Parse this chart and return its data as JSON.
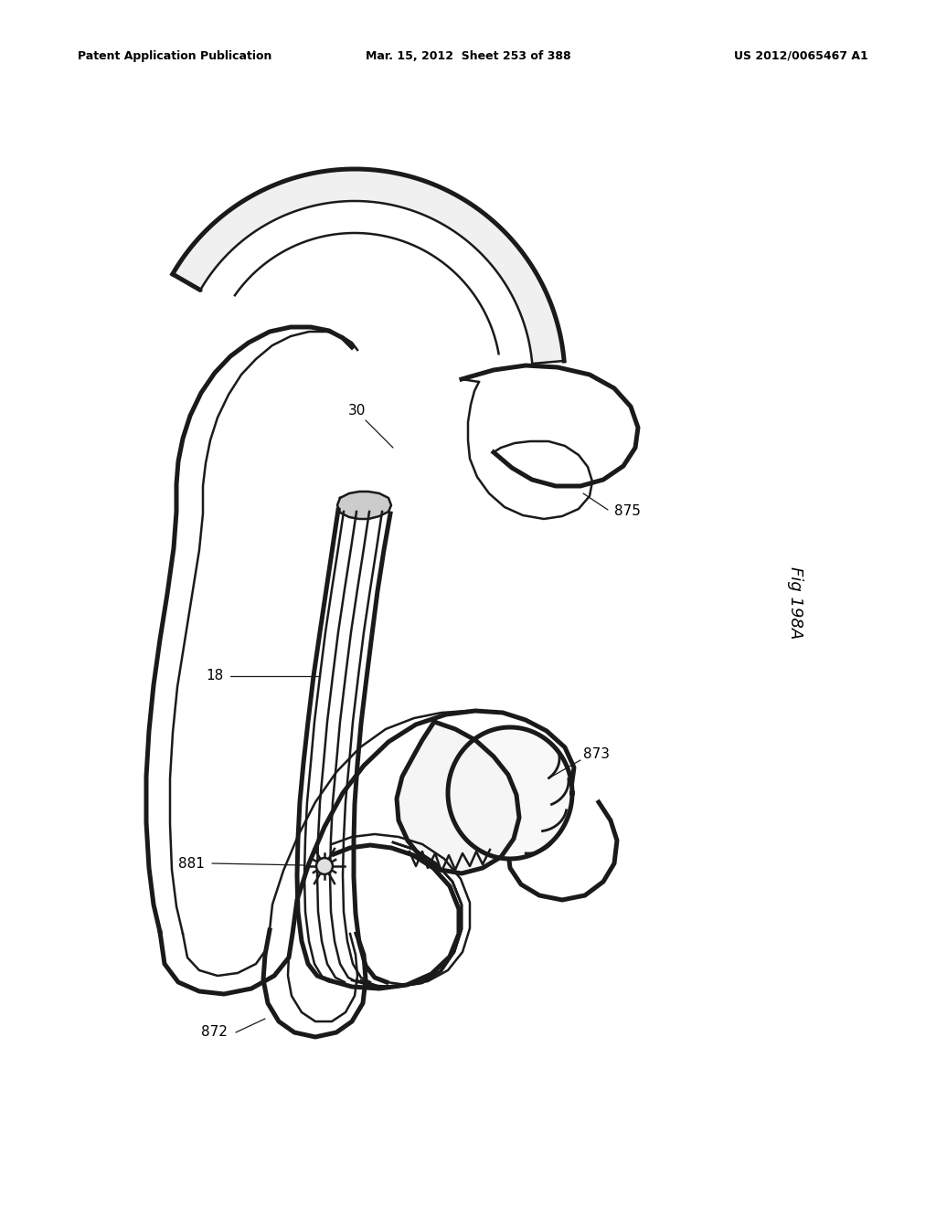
{
  "title_left": "Patent Application Publication",
  "title_mid": "Mar. 15, 2012  Sheet 253 of 388",
  "title_right": "US 2012/0065467 A1",
  "fig_label": "Fig 198A",
  "bg_color": "#ffffff",
  "line_color": "#1a1a1a",
  "line_width": 2.0,
  "header_fontsize": 9,
  "label_fontsize": 11,
  "fig_label_fontsize": 13
}
